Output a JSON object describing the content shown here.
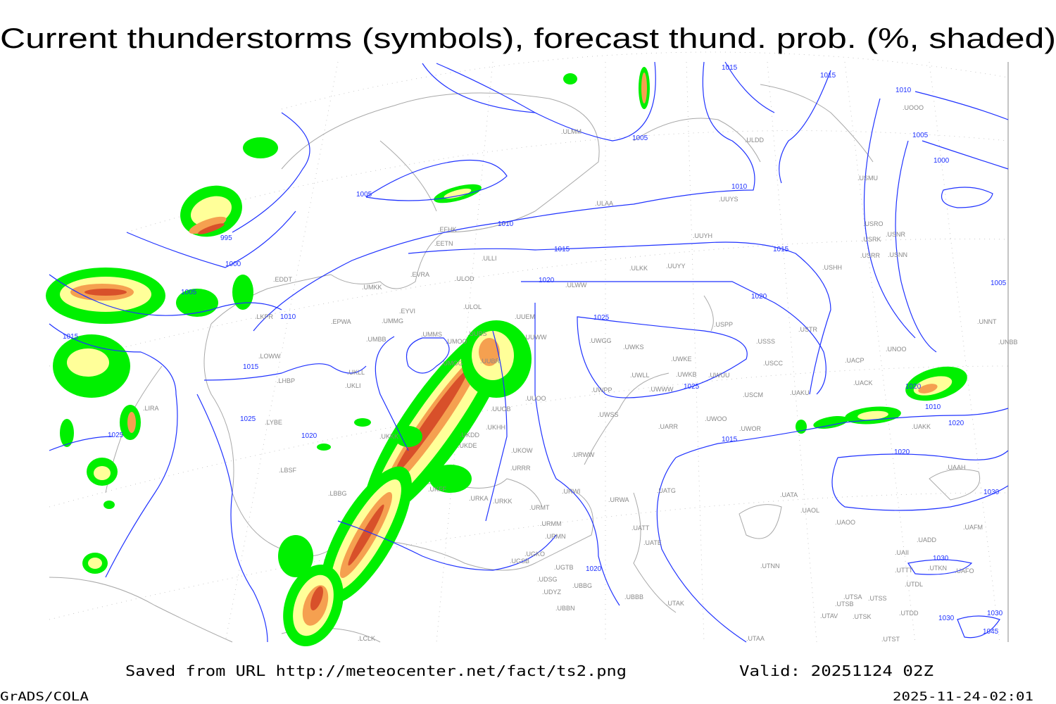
{
  "title": "Current thunderstorms (symbols), forecast thund. prob. (%, shaded)",
  "footer": {
    "source": "Saved from URL http://meteocenter.net/fact/ts2.png",
    "valid": "Valid: 20251124 02Z",
    "software": "GrADS/COLA",
    "timestamp": "2025-11-24-02:01"
  },
  "colors": {
    "prob_low": "#00f000",
    "prob_mid": "#ffff99",
    "prob_high": "#f5a050",
    "prob_max": "#d8502a",
    "isobars": "#1f32ff",
    "coastlines": "#a8a8a8",
    "stations": "#888888"
  },
  "isobar_labels": [
    "1015",
    "1015",
    "1010",
    "1005",
    "1000",
    "1005",
    "1005",
    "1010",
    "1005",
    "995",
    "1000",
    "1005",
    "1010",
    "1010",
    "1015",
    "1015",
    "1020",
    "1020",
    "1025",
    "1025",
    "1020",
    "1015",
    "1015",
    "1010",
    "1020",
    "1015",
    "1020",
    "1025",
    "1025",
    "1030",
    "1030",
    "1020",
    "1020",
    "1030",
    "1045",
    "1030"
  ],
  "stations": [
    "EFHK",
    "EETN",
    "EVRA",
    "ULOD",
    "UMKK",
    "EYVI",
    "UMMG",
    "EPWA",
    "ULOL",
    "UMBB",
    "UMMS",
    "UMOO",
    "UUBS",
    "UUEM",
    "UUWW",
    "ULLI",
    "ULAA",
    "ULMM",
    "ULDD",
    "UUYS",
    "UUYH",
    "ULKK",
    "UUYY",
    "ULWW",
    "USPP",
    "USSS",
    "USTR",
    "USCC",
    "UWGG",
    "UWKS",
    "UWKE",
    "UWKB",
    "UWUU",
    "UWLL",
    "UWPP",
    "UWWW",
    "UUOO",
    "UUOB",
    "UKHH",
    "UKDD",
    "UKDE",
    "UKKK",
    "UKOW",
    "URRR",
    "UWSS",
    "UARR",
    "UWOO",
    "UWOR",
    "USCM",
    "UAKU",
    "UACK",
    "UACP",
    "UNOO",
    "UNNT",
    "UNBB",
    "UAKK",
    "LKPR",
    "LOWW",
    "LHBP",
    "UKLL",
    "UKLI",
    "LYBE",
    "LBSF",
    "LBBG",
    "LIRA",
    "UKFF",
    "URKA",
    "URKK",
    "URMT",
    "URMM",
    "URMN",
    "URWA",
    "URWI",
    "URWW",
    "UATG",
    "UATA",
    "UAOL",
    "UAOO",
    "UATT",
    "UATE",
    "UGSB",
    "UGKO",
    "UGTB",
    "UDSG",
    "UBBG",
    "UDYZ",
    "UBBN",
    "UBBB",
    "UTAK",
    "UTNN",
    "UTSA",
    "UTSB",
    "UTSS",
    "UTAV",
    "UTSK",
    "UTDD",
    "UTST",
    "UTAA",
    "UTDL",
    "UTTT",
    "UAAH",
    "UAFM",
    "UADD",
    "UAII",
    "UTKN",
    "UAFO",
    "UOOO",
    "USMU",
    "USRO",
    "USRK",
    "USNR",
    "USRR",
    "USNN",
    "USHH",
    "LCLK",
    "UMGG",
    "UUBR",
    "EDDT"
  ]
}
